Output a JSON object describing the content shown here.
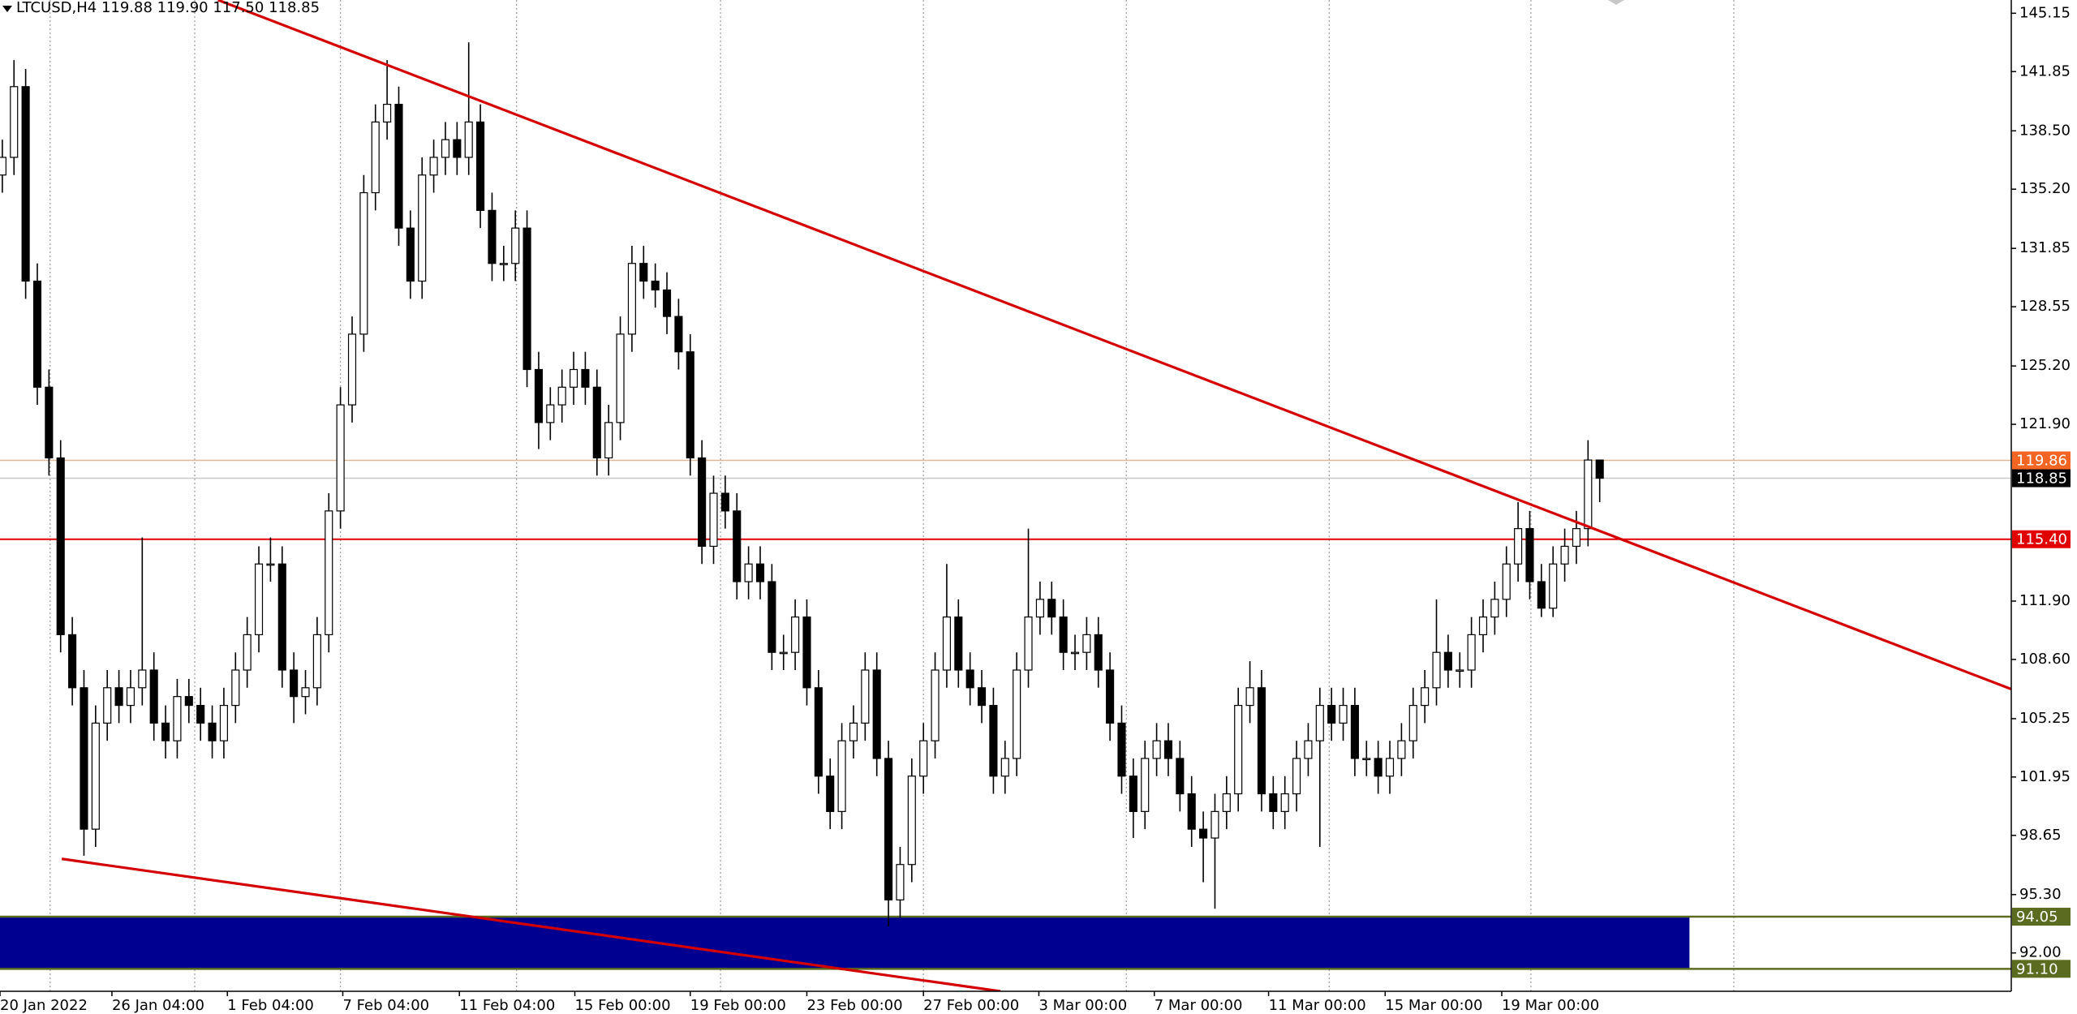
{
  "chart_data": {
    "type": "candlestick",
    "title": "LTCUSD,H4  119.88 119.90 117.50 118.85",
    "open": [
      136,
      137,
      141,
      130,
      124,
      120,
      110,
      107,
      99,
      105,
      107,
      106,
      107,
      108,
      105,
      104,
      106.5,
      106,
      105,
      104,
      106,
      108,
      110,
      114,
      114,
      108,
      106.5,
      107,
      110,
      117,
      123,
      127,
      135,
      139,
      140,
      133,
      130,
      136,
      137,
      138,
      137,
      139,
      134,
      131,
      131,
      133,
      125,
      122,
      123,
      124,
      125,
      124,
      120,
      122,
      127,
      131,
      130,
      129.5,
      128,
      126,
      120,
      115,
      118,
      117,
      113,
      114,
      113,
      109,
      109,
      111,
      107,
      102,
      100,
      104,
      105,
      108,
      103,
      95,
      97,
      102,
      104,
      108,
      111,
      108,
      107,
      106,
      102,
      103,
      108,
      111,
      112,
      111,
      109,
      109,
      110,
      108,
      105,
      102,
      100,
      103,
      104,
      103,
      101,
      99,
      98.5,
      100,
      101,
      106,
      107,
      101,
      100,
      101,
      103,
      104,
      106,
      105,
      106,
      103,
      103,
      102,
      103,
      104,
      106,
      107,
      109,
      108,
      108,
      110,
      111,
      112,
      114,
      116,
      113,
      111.5,
      114,
      115,
      116,
      119.88
    ],
    "high": [
      138,
      142.5,
      142,
      131,
      125,
      121,
      111,
      108,
      106,
      108,
      108,
      108,
      115.5,
      109,
      106,
      107.5,
      107.5,
      107,
      106,
      107,
      109,
      111,
      115,
      115.5,
      115,
      109,
      108,
      111,
      118,
      124,
      128,
      136,
      140,
      142.5,
      141,
      134,
      137,
      138,
      139,
      139,
      143.5,
      140,
      135,
      132,
      134,
      134,
      126,
      124,
      125,
      126,
      126,
      125,
      123,
      128,
      132,
      132,
      131,
      130.5,
      129,
      127,
      121,
      119,
      119,
      118,
      115,
      115,
      114,
      110,
      112,
      112,
      108,
      103,
      105,
      106,
      109,
      109,
      104,
      98,
      103,
      105,
      109,
      114,
      112,
      109,
      108,
      107,
      104,
      109,
      116,
      113,
      113,
      112,
      110,
      111,
      111,
      109,
      106,
      103,
      104,
      105,
      105,
      104,
      102,
      100,
      101,
      102,
      107,
      108.5,
      108,
      102,
      102,
      104,
      105,
      107,
      107,
      107,
      107,
      104,
      104,
      104,
      105,
      107,
      108,
      112,
      110,
      109,
      111,
      112,
      113,
      115,
      117.5,
      117,
      114,
      115,
      116,
      117,
      121,
      119.9
    ],
    "low": [
      135,
      136,
      129,
      123,
      119,
      109,
      106,
      97.5,
      98,
      104,
      105,
      105,
      106,
      104,
      103,
      103,
      105,
      104,
      103,
      103,
      105,
      107,
      109,
      113,
      107,
      105,
      105.5,
      106,
      109,
      116,
      122,
      126,
      134,
      138,
      132,
      129,
      129,
      135,
      136,
      136,
      136,
      133,
      130,
      130,
      130,
      124,
      120.5,
      121,
      122,
      123,
      123,
      119,
      119,
      121,
      126,
      129,
      128.5,
      127,
      125,
      119,
      114,
      114,
      116,
      112,
      112,
      112,
      108,
      108,
      108,
      106,
      101,
      99,
      99,
      103,
      104,
      102,
      93.5,
      94,
      96,
      101,
      103,
      107,
      107,
      106,
      105,
      101,
      101,
      102,
      107,
      110,
      110,
      108,
      108,
      108,
      107,
      104,
      101,
      98.5,
      99,
      102,
      102,
      100,
      98,
      96,
      94.5,
      99,
      100,
      105,
      100,
      99,
      99,
      100,
      102,
      98,
      104,
      104,
      102,
      102,
      101,
      101,
      102,
      103,
      105,
      106,
      107,
      107,
      107,
      109,
      110,
      111,
      113,
      112,
      111,
      111,
      113,
      114,
      115,
      117.5
    ],
    "close": [
      137,
      141,
      130,
      124,
      120,
      110,
      107,
      99,
      105,
      107,
      106,
      107,
      108,
      105,
      104,
      106.5,
      106,
      105,
      104,
      106,
      108,
      110,
      114,
      114,
      108,
      106.5,
      107,
      110,
      117,
      123,
      127,
      135,
      139,
      140,
      133,
      130,
      136,
      137,
      138,
      137,
      139,
      134,
      131,
      131,
      133,
      125,
      122,
      123,
      124,
      125,
      124,
      120,
      122,
      127,
      131,
      130,
      129.5,
      128,
      126,
      120,
      115,
      118,
      117,
      113,
      114,
      113,
      109,
      109,
      111,
      107,
      102,
      100,
      104,
      105,
      108,
      103,
      95,
      97,
      102,
      104,
      108,
      111,
      108,
      107,
      106,
      102,
      103,
      108,
      111,
      112,
      111,
      109,
      109,
      110,
      108,
      105,
      102,
      100,
      103,
      104,
      103,
      101,
      99,
      98.5,
      100,
      101,
      106,
      107,
      101,
      100,
      101,
      103,
      104,
      106,
      105,
      106,
      103,
      103,
      102,
      103,
      104,
      106,
      107,
      109,
      108,
      108,
      110,
      111,
      112,
      114,
      116,
      113,
      111.5,
      114,
      115,
      116,
      119.88,
      118.85
    ],
    "up_color": "#ffffff",
    "down_color": "#000000",
    "xlim": [
      -0.2,
      172.3
    ],
    "ylim": [
      89.83,
      145.9
    ],
    "yticks": [
      145.15,
      141.85,
      {
        "value": 138.5,
        "label": "138.50"
      },
      {
        "value": 135.2,
        "label": "135.20"
      },
      131.85,
      128.55,
      {
        "value": 125.2,
        "label": "125.20"
      },
      {
        "value": 121.9,
        "label": "121.90"
      },
      {
        "value": 111.9,
        "label": "111.90"
      },
      {
        "value": 108.6,
        "label": "108.60"
      },
      105.25,
      101.95,
      98.65,
      {
        "value": 95.3,
        "label": "95.30"
      },
      {
        "value": 92,
        "label": "92.00"
      }
    ],
    "xticks": [
      {
        "value": -0.2,
        "label": "20 Jan 2022"
      },
      {
        "value": 9.4,
        "label": "26 Jan 04:00"
      },
      {
        "value": 19.3,
        "label": "1 Feb 04:00"
      },
      {
        "value": 29.2,
        "label": "7 Feb 04:00"
      },
      {
        "value": 39.2,
        "label": "11 Feb 04:00"
      },
      {
        "value": 49.1,
        "label": "15 Feb 00:00"
      },
      {
        "value": 59,
        "label": "19 Feb 00:00"
      },
      {
        "value": 69,
        "label": "23 Feb 00:00"
      },
      {
        "value": 79,
        "label": "27 Feb 00:00"
      },
      {
        "value": 88.9,
        "label": "3 Mar 00:00"
      },
      {
        "value": 98.8,
        "label": "7 Mar 00:00"
      },
      {
        "value": 108.6,
        "label": "11 Mar 00:00"
      },
      {
        "value": 118.6,
        "label": "15 Mar 00:00"
      },
      {
        "value": 128.6,
        "label": "19 Mar 00:00"
      }
    ],
    "xgrid": [
      4.1,
      16.5,
      29,
      44.1,
      61.6,
      79,
      96.4,
      113.8,
      131.1,
      148.5
    ],
    "hlines": [
      {
        "value": 115.4,
        "label": "115.40",
        "color": "#e00000",
        "line_color": "#e00000"
      },
      {
        "value": 119.86,
        "label": "119.86",
        "color": "#f26522",
        "line_color": "#dcb898"
      },
      {
        "value": 118.85,
        "label": "118.85",
        "color": "#000000",
        "line_color": "#c8c8c8"
      }
    ],
    "trendlines": [
      {
        "x": [
          18.5,
          172.3
        ],
        "y": [
          145.9,
          106.92
        ],
        "color": "#d40000"
      },
      {
        "x": [
          5.1,
          85.6
        ],
        "y": [
          97.32,
          89.83
        ],
        "color": "#d40000"
      }
    ],
    "zone": {
      "high": {
        "value": 94.05,
        "label": "94.05"
      },
      "low": {
        "value": 91.1,
        "label": "91.10"
      },
      "x_end": 144.7,
      "color": "#000090",
      "border_color": "#5b6b1f"
    }
  }
}
